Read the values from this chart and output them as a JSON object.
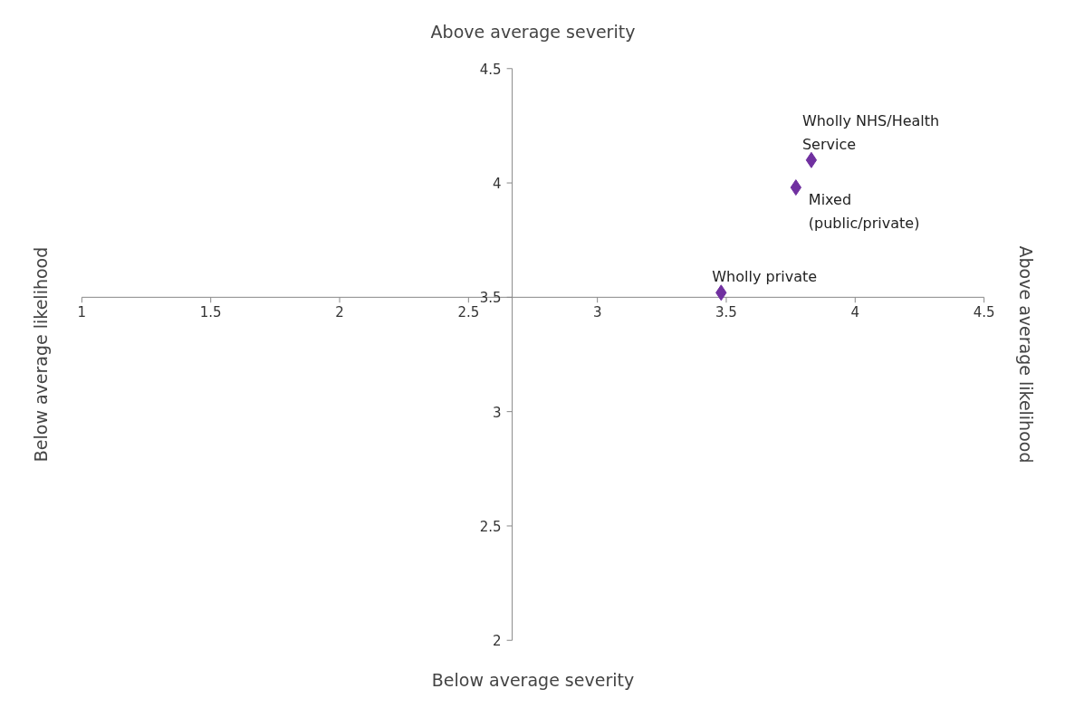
{
  "chart_data": {
    "type": "scatter",
    "title": "Above average severity",
    "xlabel": "Below average severity",
    "ylabel": "Below average likelihood",
    "y2label": "Above average likelihood",
    "x": [
      3.83,
      3.77,
      3.48
    ],
    "series": [
      {
        "color": "#7030a0",
        "values": [
          4.1,
          3.98,
          3.52
        ]
      }
    ],
    "marker": "diamond",
    "grid": false,
    "xlim": [
      1,
      4.5
    ],
    "xticks": [
      1,
      1.5,
      2,
      2.5,
      3,
      3.5,
      4,
      4.5
    ],
    "ylim": [
      2,
      4.5
    ],
    "yticks": [
      2,
      2.5,
      3,
      3.5,
      4,
      4.5
    ],
    "annotations": [
      {
        "text": "Wholly NHS/Health Service",
        "x": 3.83,
        "y": 4.1
      },
      {
        "text": "Mixed (public/private)",
        "x": 3.77,
        "y": 3.98
      },
      {
        "text": "Wholly private",
        "x": 3.48,
        "y": 3.52
      }
    ]
  }
}
